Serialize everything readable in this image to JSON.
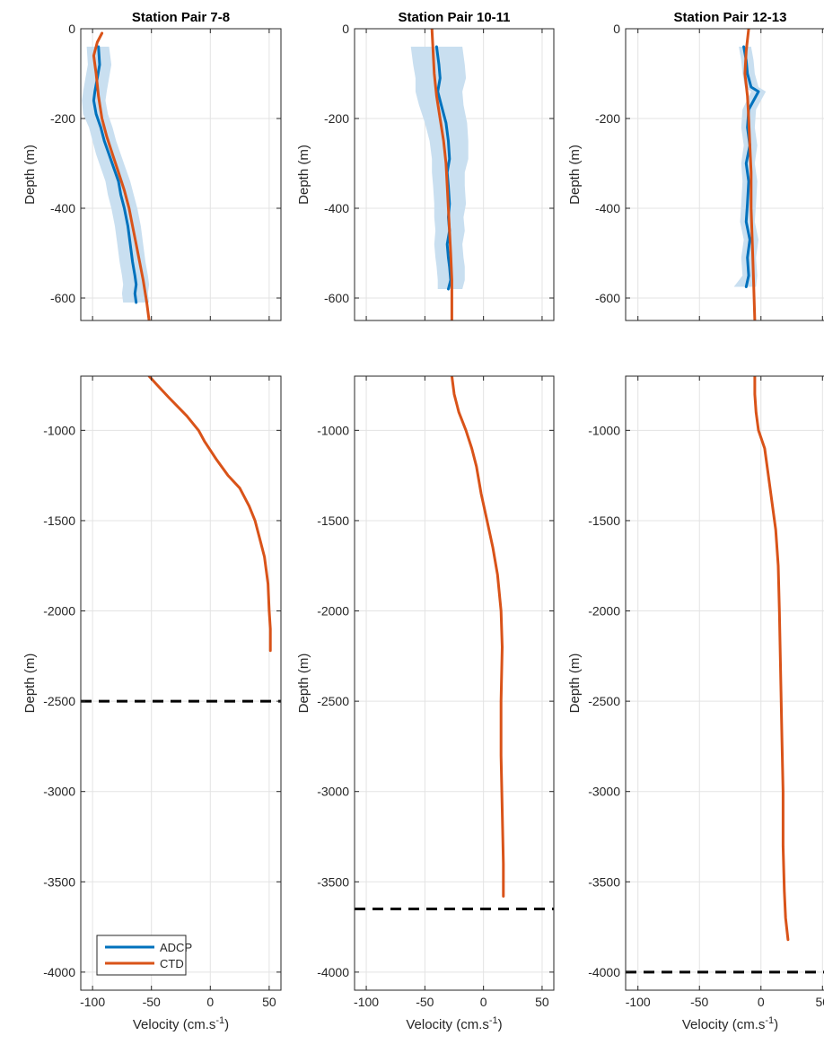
{
  "colors": {
    "adcp": "#0072BD",
    "ctd": "#D95319",
    "band": "#C9DFF0",
    "grid": "#E3E3E3",
    "axis": "#262626",
    "bottom_line": "#000000"
  },
  "legend": {
    "adcp_label": "ADCP",
    "ctd_label": "CTD",
    "placement": "bottom-left of lower panel 1"
  },
  "xlabel_main": "Velocity (cm.s",
  "xlabel_sup": "-1",
  "xlabel_close": ")",
  "ylabel": "Depth (m)",
  "chart_data": [
    {
      "type": "line",
      "title": "Station Pair 7-8",
      "xlim": [
        -110,
        60
      ],
      "ylim": [
        -650,
        0
      ],
      "xticks": [
        -100,
        -50,
        0,
        50
      ],
      "yticks": [
        0,
        -200,
        -400,
        -600
      ],
      "tick_labels_x": false,
      "ylabel": "Depth (m)",
      "grid": true,
      "series": [
        {
          "name": "ADCP",
          "x": [
            -95,
            -94,
            -96,
            -98,
            -99,
            -97,
            -93,
            -90,
            -86,
            -82,
            -78,
            -76,
            -73,
            -70,
            -68,
            -66,
            -64,
            -63,
            -64,
            -63
          ],
          "y": [
            -40,
            -80,
            -110,
            -140,
            -160,
            -190,
            -220,
            -250,
            -280,
            -310,
            -340,
            -370,
            -400,
            -440,
            -480,
            -520,
            -550,
            -570,
            -590,
            -610
          ]
        },
        {
          "name": "CTD",
          "x": [
            -92,
            -96,
            -99,
            -97,
            -95,
            -92,
            -88,
            -83,
            -78,
            -73,
            -69,
            -66,
            -63,
            -60,
            -57,
            -54,
            -52
          ],
          "y": [
            -10,
            -30,
            -60,
            -100,
            -150,
            -200,
            -240,
            -280,
            -320,
            -360,
            -400,
            -440,
            -480,
            -520,
            -560,
            -610,
            -650
          ]
        },
        {
          "name": "ADCP uncertainty",
          "x_lower": [
            -105,
            -104,
            -106,
            -108,
            -109,
            -108,
            -103,
            -100,
            -97,
            -93,
            -89,
            -87,
            -84,
            -81,
            -79,
            -77,
            -75,
            -74,
            -75,
            -74
          ],
          "x_upper": [
            -86,
            -84,
            -86,
            -88,
            -89,
            -87,
            -83,
            -80,
            -76,
            -72,
            -68,
            -65,
            -62,
            -59,
            -57,
            -55,
            -53,
            -52,
            -53,
            -52
          ],
          "y": [
            -40,
            -80,
            -110,
            -140,
            -160,
            -190,
            -220,
            -250,
            -280,
            -310,
            -340,
            -370,
            -400,
            -440,
            -480,
            -520,
            -550,
            -570,
            -590,
            -610
          ]
        }
      ]
    },
    {
      "type": "line",
      "title": "Station Pair 10-11",
      "xlim": [
        -110,
        60
      ],
      "ylim": [
        -650,
        0
      ],
      "xticks": [
        -100,
        -50,
        0,
        50
      ],
      "yticks": [
        0,
        -200,
        -400,
        -600
      ],
      "tick_labels_x": false,
      "ylabel": "Depth (m)",
      "grid": true,
      "series": [
        {
          "name": "ADCP",
          "x": [
            -40,
            -38,
            -37,
            -39,
            -36,
            -32,
            -30,
            -29,
            -31,
            -30,
            -29,
            -30,
            -29,
            -31,
            -30,
            -29,
            -28,
            -30
          ],
          "y": [
            -40,
            -80,
            -110,
            -140,
            -170,
            -210,
            -250,
            -290,
            -320,
            -350,
            -390,
            -420,
            -450,
            -480,
            -510,
            -530,
            -560,
            -580
          ]
        },
        {
          "name": "CTD",
          "x": [
            -44,
            -43,
            -42,
            -40,
            -37,
            -34,
            -32,
            -31,
            -30,
            -29,
            -28,
            -27,
            -27
          ],
          "y": [
            0,
            -50,
            -100,
            -150,
            -200,
            -250,
            -300,
            -350,
            -400,
            -450,
            -500,
            -560,
            -650
          ]
        },
        {
          "name": "ADCP uncertainty",
          "x_lower": [
            -62,
            -60,
            -58,
            -58,
            -55,
            -50,
            -46,
            -44,
            -44,
            -43,
            -42,
            -42,
            -41,
            -42,
            -41,
            -40,
            -39,
            -39
          ],
          "x_upper": [
            -18,
            -16,
            -15,
            -18,
            -17,
            -14,
            -13,
            -13,
            -16,
            -16,
            -15,
            -17,
            -16,
            -18,
            -17,
            -16,
            -16,
            -18
          ],
          "y": [
            -40,
            -80,
            -110,
            -140,
            -170,
            -210,
            -250,
            -290,
            -320,
            -350,
            -390,
            -420,
            -450,
            -480,
            -510,
            -530,
            -560,
            -580
          ]
        }
      ]
    },
    {
      "type": "line",
      "title": "Station Pair 12-13",
      "xlim": [
        -110,
        60
      ],
      "ylim": [
        -650,
        0
      ],
      "xticks": [
        -100,
        -50,
        0,
        50
      ],
      "yticks": [
        0,
        -200,
        -400,
        -600
      ],
      "tick_labels_x": false,
      "ylabel": "Depth (m)",
      "grid": true,
      "series": [
        {
          "name": "ADCP",
          "x": [
            -14,
            -12,
            -11,
            -8,
            -2,
            -10,
            -11,
            -9,
            -12,
            -10,
            -11,
            -12,
            -9,
            -11,
            -10,
            -12
          ],
          "y": [
            -40,
            -70,
            -100,
            -130,
            -140,
            -180,
            -220,
            -260,
            -300,
            -340,
            -390,
            -430,
            -470,
            -510,
            -550,
            -575
          ]
        },
        {
          "name": "CTD",
          "x": [
            -10,
            -12,
            -13,
            -11,
            -10,
            -9,
            -8,
            -8,
            -7,
            -6,
            -5
          ],
          "y": [
            0,
            -50,
            -100,
            -150,
            -200,
            -260,
            -320,
            -400,
            -480,
            -560,
            -650
          ]
        },
        {
          "name": "ADCP uncertainty",
          "x_lower": [
            -18,
            -16,
            -15,
            -13,
            -8,
            -15,
            -16,
            -14,
            -16,
            -15,
            -16,
            -17,
            -14,
            -16,
            -15,
            -22
          ],
          "x_upper": [
            -8,
            -6,
            -5,
            -2,
            4,
            -4,
            -5,
            -3,
            -5,
            -3,
            -4,
            -5,
            -2,
            -4,
            -3,
            -4
          ],
          "y": [
            -40,
            -70,
            -100,
            -130,
            -140,
            -180,
            -220,
            -260,
            -300,
            -340,
            -390,
            -430,
            -470,
            -510,
            -550,
            -575
          ]
        }
      ]
    },
    {
      "type": "line",
      "xlim": [
        -110,
        60
      ],
      "ylim": [
        -4100,
        -700
      ],
      "xticks": [
        -100,
        -50,
        0,
        50
      ],
      "yticks": [
        -1000,
        -1500,
        -2000,
        -2500,
        -3000,
        -3500,
        -4000
      ],
      "tick_labels_x": true,
      "xlabel": "Velocity (cm.s-1)",
      "ylabel": "Depth (m)",
      "grid": true,
      "bottom_depth": -2500,
      "legend": true,
      "series": [
        {
          "name": "CTD",
          "x": [
            -52,
            -45,
            -35,
            -20,
            -10,
            -5,
            5,
            15,
            25,
            33,
            38,
            42,
            46,
            49,
            50,
            51,
            51
          ],
          "y": [
            -700,
            -750,
            -820,
            -920,
            -1000,
            -1060,
            -1160,
            -1250,
            -1320,
            -1420,
            -1500,
            -1600,
            -1700,
            -1850,
            -2000,
            -2100,
            -2220
          ]
        }
      ]
    },
    {
      "type": "line",
      "xlim": [
        -110,
        60
      ],
      "ylim": [
        -4100,
        -700
      ],
      "xticks": [
        -100,
        -50,
        0,
        50
      ],
      "yticks": [
        -1000,
        -1500,
        -2000,
        -2500,
        -3000,
        -3500,
        -4000
      ],
      "tick_labels_x": true,
      "xlabel": "Velocity (cm.s-1)",
      "ylabel": "Depth (m)",
      "grid": true,
      "bottom_depth": -3650,
      "series": [
        {
          "name": "CTD",
          "x": [
            -27,
            -25,
            -21,
            -15,
            -10,
            -6,
            -2,
            3,
            8,
            12,
            15,
            16,
            15,
            15,
            16,
            17,
            17
          ],
          "y": [
            -700,
            -800,
            -900,
            -1000,
            -1100,
            -1200,
            -1350,
            -1500,
            -1650,
            -1800,
            -2000,
            -2200,
            -2500,
            -2800,
            -3100,
            -3400,
            -3580
          ]
        }
      ]
    },
    {
      "type": "line",
      "xlim": [
        -110,
        60
      ],
      "ylim": [
        -4100,
        -700
      ],
      "xticks": [
        -100,
        -50,
        0,
        50
      ],
      "yticks": [
        -1000,
        -1500,
        -2000,
        -2500,
        -3000,
        -3500,
        -4000
      ],
      "tick_labels_x": true,
      "xlabel": "Velocity (cm.s-1)",
      "ylabel": "Depth (m)",
      "grid": true,
      "bottom_depth": -4000,
      "series": [
        {
          "name": "CTD",
          "x": [
            -5,
            -5,
            -4,
            -2,
            3,
            6,
            9,
            12,
            14,
            15,
            16,
            17,
            18,
            18,
            19,
            20,
            22
          ],
          "y": [
            -700,
            -800,
            -900,
            -1000,
            -1100,
            -1250,
            -1400,
            -1550,
            -1750,
            -2000,
            -2350,
            -2700,
            -3000,
            -3300,
            -3550,
            -3700,
            -3820
          ]
        }
      ]
    }
  ]
}
